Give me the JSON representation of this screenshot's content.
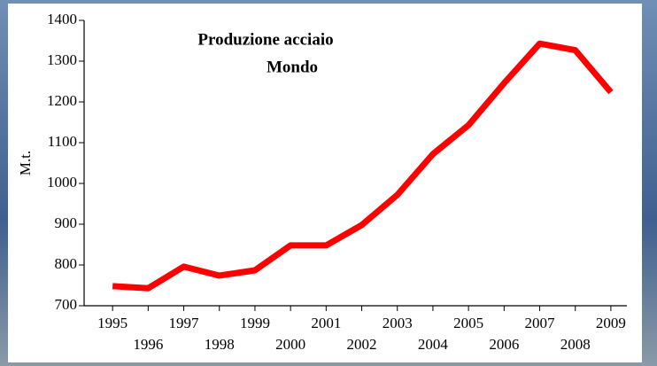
{
  "chart_data": {
    "type": "line",
    "title": "Produzione acciaio",
    "subtitle": "Mondo",
    "y_label": "M.t.",
    "x": [
      1995,
      1996,
      1997,
      1998,
      1999,
      2000,
      2001,
      2002,
      2003,
      2004,
      2005,
      2006,
      2007,
      2008,
      2009
    ],
    "series": [
      {
        "name": "Produzione",
        "color": "#ff0000",
        "values": [
          748,
          743,
          796,
          774,
          787,
          848,
          848,
          898,
          972,
          1072,
          1143,
          1246,
          1343,
          1327,
          1224
        ]
      }
    ],
    "xlim": [
      1994.2,
      2009.45
    ],
    "xticks": [
      1995,
      1996,
      1997,
      1998,
      1999,
      2000,
      2001,
      2002,
      2003,
      2004,
      2005,
      2006,
      2007,
      2008,
      2009
    ],
    "ylim": [
      700,
      1400
    ],
    "yticks": [
      700,
      800,
      900,
      1000,
      1100,
      1200,
      1300,
      1400
    ]
  }
}
